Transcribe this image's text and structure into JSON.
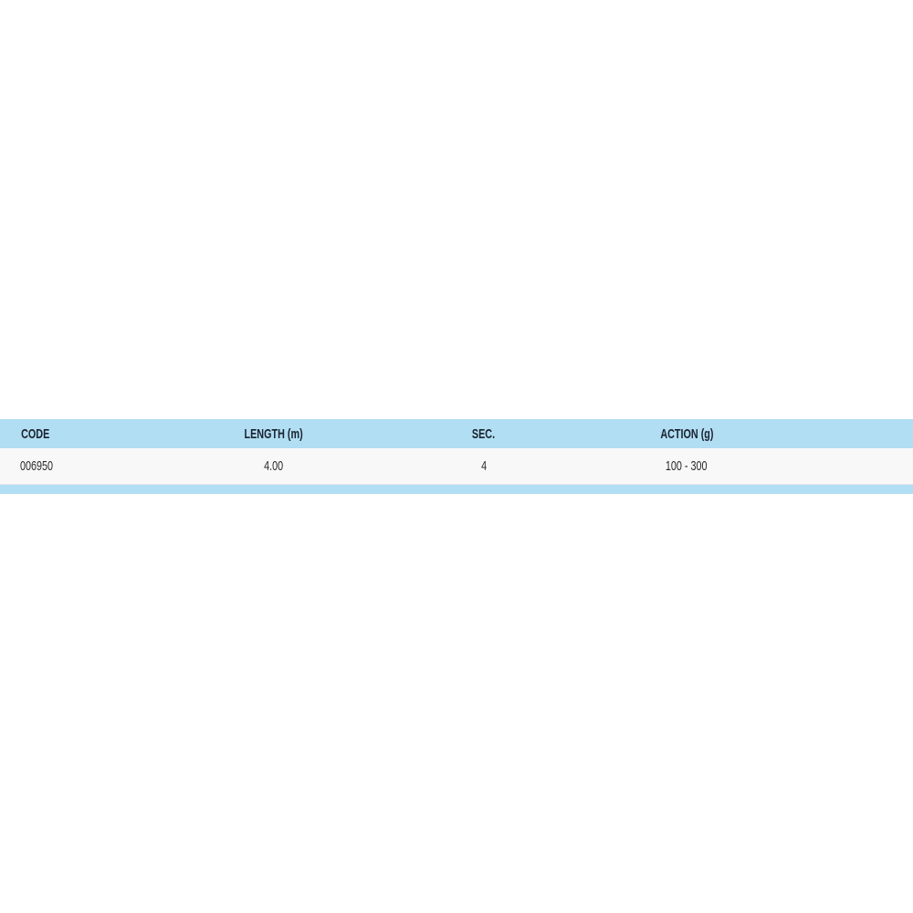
{
  "table": {
    "columns": [
      "CODE",
      "LENGTH (m)",
      "SEC.",
      "ACTION (g)"
    ],
    "rows": [
      [
        "006950",
        "4.00",
        "4",
        "100 - 300"
      ]
    ]
  },
  "colors": {
    "header_bg": "#b1def2",
    "row_bg": "#f8f8f8"
  }
}
